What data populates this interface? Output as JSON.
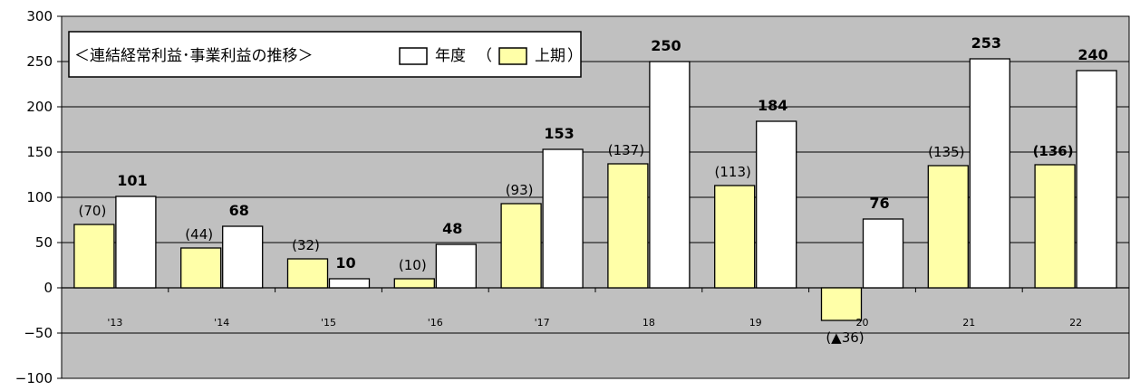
{
  "chart_data": {
    "type": "bar",
    "title": "＜連結経常利益･事業利益の推移＞",
    "categories": [
      "'13",
      "'14",
      "'15",
      "'16",
      "'17",
      "18",
      "19",
      "20",
      "21",
      "22"
    ],
    "series": [
      {
        "name": "上期",
        "values": [
          70,
          44,
          32,
          10,
          93,
          137,
          113,
          -36,
          135,
          136
        ],
        "labels": [
          "(70)",
          "(44)",
          "(32)",
          "(10)",
          "(93)",
          "(137)",
          "(113)",
          "(▲36)",
          "(135)",
          "(136)"
        ],
        "color": "#ffffa8"
      },
      {
        "name": "年度",
        "values": [
          101,
          68,
          10,
          48,
          153,
          250,
          184,
          76,
          253,
          240
        ],
        "labels": [
          "101",
          "68",
          "10",
          "48",
          "153",
          "250",
          "184",
          "76",
          "253",
          "240"
        ],
        "color": "#ffffff"
      }
    ],
    "legend": {
      "annual_label": "年度",
      "open_paren": "（",
      "half_label": "上期",
      "close_paren": "）"
    },
    "yticks": [
      "300",
      "250",
      "200",
      "150",
      "100",
      "50",
      "0",
      "−50",
      "−100"
    ],
    "ylim": [
      -100,
      300
    ],
    "grid": true,
    "legend_position": "top-left",
    "plot_background": "#c0c0c0"
  }
}
